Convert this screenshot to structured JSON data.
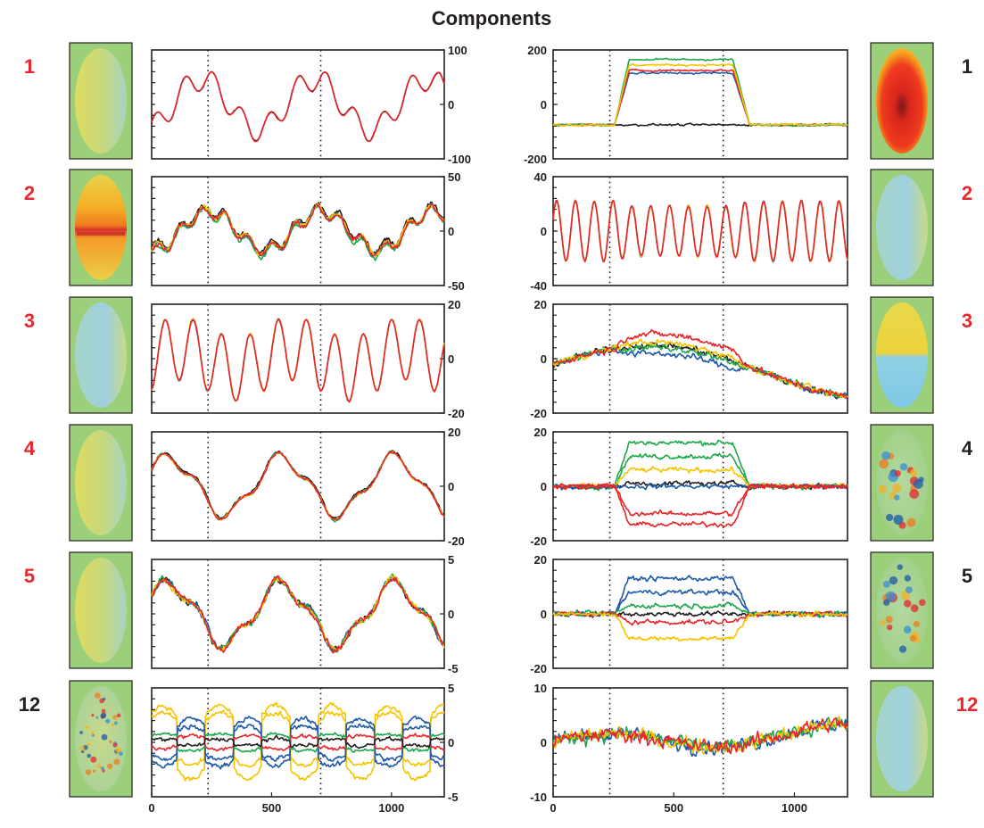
{
  "chart_data": {
    "type": "line",
    "title": "Components",
    "x_ticks": [
      0,
      500,
      1000
    ],
    "xlim": [
      0,
      1220
    ],
    "markers_x": [
      235,
      705
    ],
    "colors": {
      "black": "#231f20",
      "blue": "#1f5aa8",
      "green": "#1fa84a",
      "yellow": "#f5c400",
      "red": "#e8262b",
      "label_red": "#e8262b",
      "label_black": "#231f20"
    },
    "left_column": [
      {
        "label": "1",
        "label_color": "red",
        "ylim": [
          -100,
          100
        ],
        "y_ticks": [
          "100",
          "0",
          "-100"
        ],
        "map": "faint-pos",
        "series": [
          {
            "color": "black",
            "kind": "osc",
            "amp": 62,
            "noise": 2,
            "fade": 0,
            "offset": 0
          },
          {
            "color": "red",
            "kind": "osc",
            "amp": 62,
            "noise": 1,
            "fade": 0,
            "offset": 0
          }
        ]
      },
      {
        "label": "2",
        "label_color": "red",
        "ylim": [
          -50,
          50
        ],
        "y_ticks": [
          "50",
          "0",
          "-50"
        ],
        "map": "warm-band",
        "series": [
          {
            "color": "black",
            "kind": "osc2",
            "amp": 22,
            "noise": 4,
            "fade": 0,
            "offset": 2
          },
          {
            "color": "blue",
            "kind": "osc2",
            "amp": 22,
            "noise": 4,
            "fade": 0,
            "offset": 0
          },
          {
            "color": "green",
            "kind": "osc2",
            "amp": 23,
            "noise": 4,
            "fade": 0,
            "offset": -1
          },
          {
            "color": "yellow",
            "kind": "osc2",
            "amp": 22,
            "noise": 4,
            "fade": 0,
            "offset": 1
          },
          {
            "color": "red",
            "kind": "osc2",
            "amp": 22,
            "noise": 4,
            "fade": 0,
            "offset": 0
          }
        ]
      },
      {
        "label": "3",
        "label_color": "red",
        "ylim": [
          -20,
          20
        ],
        "y_ticks": [
          "20",
          "0",
          "-20"
        ],
        "map": "faint-cool",
        "series": [
          {
            "color": "blue",
            "kind": "osc3",
            "amp": 13,
            "noise": 0.6,
            "fade": 0,
            "offset": 0
          },
          {
            "color": "yellow",
            "kind": "osc3",
            "amp": 13,
            "noise": 0.6,
            "fade": 0,
            "offset": 0
          },
          {
            "color": "red",
            "kind": "osc3",
            "amp": 13,
            "noise": 0.6,
            "fade": 0,
            "offset": 0
          }
        ]
      },
      {
        "label": "4",
        "label_color": "red",
        "ylim": [
          -20,
          20
        ],
        "y_ticks": [
          "20",
          "0",
          "-20"
        ],
        "map": "faint-pos",
        "series": [
          {
            "color": "black",
            "kind": "osc4",
            "amp": 12,
            "noise": 0.8,
            "fade": 0,
            "offset": 0.5
          },
          {
            "color": "green",
            "kind": "osc4",
            "amp": 12,
            "noise": 0.8,
            "fade": 0,
            "offset": 0
          },
          {
            "color": "yellow",
            "kind": "osc4",
            "amp": 12,
            "noise": 0.8,
            "fade": 0,
            "offset": 0
          },
          {
            "color": "red",
            "kind": "osc4",
            "amp": 12,
            "noise": 0.8,
            "fade": 0,
            "offset": 0
          }
        ]
      },
      {
        "label": "5",
        "label_color": "red",
        "ylim": [
          -5,
          5
        ],
        "y_ticks": [
          "5",
          "0",
          "-5"
        ],
        "map": "faint-pos",
        "series": [
          {
            "color": "black",
            "kind": "osc4",
            "amp": 3.2,
            "noise": 0.5,
            "fade": 0,
            "offset": 0
          },
          {
            "color": "blue",
            "kind": "osc4",
            "amp": 3.2,
            "noise": 0.5,
            "fade": 0,
            "offset": 0
          },
          {
            "color": "green",
            "kind": "osc4",
            "amp": 3.2,
            "noise": 0.5,
            "fade": 0,
            "offset": 0
          },
          {
            "color": "yellow",
            "kind": "osc4",
            "amp": 3.2,
            "noise": 0.5,
            "fade": 0,
            "offset": 0
          },
          {
            "color": "red",
            "kind": "osc4",
            "amp": 3.2,
            "noise": 0.5,
            "fade": 0,
            "offset": 0
          }
        ]
      },
      {
        "label": "12",
        "label_color": "black",
        "ylim": [
          -5,
          5
        ],
        "y_ticks": [
          "5",
          "0",
          "-5"
        ],
        "map": "speckle",
        "series": [
          {
            "color": "yellow",
            "kind": "sq",
            "amp": 3.4,
            "noise": 0.4,
            "fade": 0,
            "offset": 0
          },
          {
            "color": "yellow",
            "kind": "sq",
            "amp": 2.4,
            "noise": 0.4,
            "fade": 0,
            "offset": 0.3
          },
          {
            "color": "blue",
            "kind": "sq",
            "amp": -2.2,
            "noise": 0.4,
            "fade": 0,
            "offset": 0
          },
          {
            "color": "blue",
            "kind": "sq",
            "amp": -1.5,
            "noise": 0.4,
            "fade": 0,
            "offset": 0
          },
          {
            "color": "green",
            "kind": "sq",
            "amp": 0.8,
            "noise": 0.3,
            "fade": 0,
            "offset": 0
          },
          {
            "color": "red",
            "kind": "sq",
            "amp": -0.6,
            "noise": 0.3,
            "fade": 0,
            "offset": 0
          },
          {
            "color": "black",
            "kind": "sq",
            "amp": 0.3,
            "noise": 0.3,
            "fade": 0,
            "offset": 0
          }
        ]
      }
    ],
    "right_column": [
      {
        "label": "1",
        "label_color": "black",
        "ylim": [
          -200,
          200
        ],
        "y_ticks": [
          "200",
          "0",
          "-200"
        ],
        "map": "red-blob",
        "series": [
          {
            "color": "black",
            "kind": "flat",
            "amp": 0,
            "noise": 6,
            "fade": 0,
            "offset": -75
          },
          {
            "color": "blue",
            "kind": "plateau",
            "amp": 190,
            "noise": 6,
            "fade": 0,
            "offset": -75
          },
          {
            "color": "red",
            "kind": "plateau",
            "amp": 200,
            "noise": 6,
            "fade": 0,
            "offset": -75
          },
          {
            "color": "green",
            "kind": "plateau",
            "amp": 240,
            "noise": 6,
            "fade": 0,
            "offset": -75
          },
          {
            "color": "yellow",
            "kind": "plateau",
            "amp": 220,
            "noise": 6,
            "fade": 0,
            "offset": -75
          }
        ]
      },
      {
        "label": "2",
        "label_color": "red",
        "ylim": [
          -40,
          40
        ],
        "y_ticks": [
          "40",
          "0",
          "-40"
        ],
        "map": "faint-cool",
        "series": [
          {
            "color": "blue",
            "kind": "fast",
            "amp": 22,
            "noise": 1.5,
            "fade": 0,
            "offset": 0
          },
          {
            "color": "yellow",
            "kind": "fast",
            "amp": 22,
            "noise": 1.5,
            "fade": 0,
            "offset": 0
          },
          {
            "color": "red",
            "kind": "fast",
            "amp": 22,
            "noise": 1.5,
            "fade": 0,
            "offset": 0
          }
        ]
      },
      {
        "label": "3",
        "label_color": "red",
        "ylim": [
          -20,
          20
        ],
        "y_ticks": [
          "20",
          "0",
          "-20"
        ],
        "map": "split",
        "series": [
          {
            "color": "black",
            "kind": "drift",
            "amp": 0,
            "noise": 2,
            "fade": 0,
            "offset": 0
          },
          {
            "color": "blue",
            "kind": "drift",
            "amp": -3,
            "noise": 2,
            "fade": 0,
            "offset": 0
          },
          {
            "color": "green",
            "kind": "drift",
            "amp": -1,
            "noise": 2,
            "fade": 0,
            "offset": 0
          },
          {
            "color": "yellow",
            "kind": "drift",
            "amp": 1,
            "noise": 2,
            "fade": 0,
            "offset": 0
          },
          {
            "color": "red",
            "kind": "drift",
            "amp": 4,
            "noise": 2,
            "fade": 0,
            "offset": 0
          }
        ]
      },
      {
        "label": "4",
        "label_color": "black",
        "ylim": [
          -20,
          20
        ],
        "y_ticks": [
          "20",
          "0",
          "-20"
        ],
        "map": "blobs",
        "series": [
          {
            "color": "black",
            "kind": "plateau",
            "amp": 1,
            "noise": 1.5,
            "fade": 0,
            "offset": 0
          },
          {
            "color": "green",
            "kind": "plateau",
            "amp": 16,
            "noise": 1.5,
            "fade": 0,
            "offset": 0
          },
          {
            "color": "green",
            "kind": "plateau",
            "amp": 11,
            "noise": 1.5,
            "fade": 0,
            "offset": 0
          },
          {
            "color": "yellow",
            "kind": "plateau",
            "amp": 6,
            "noise": 1.5,
            "fade": 0,
            "offset": 0
          },
          {
            "color": "blue",
            "kind": "plateau",
            "amp": 0,
            "noise": 1.5,
            "fade": 0,
            "offset": 0
          },
          {
            "color": "red",
            "kind": "plateau",
            "amp": -10,
            "noise": 1.5,
            "fade": 0,
            "offset": 0
          },
          {
            "color": "red",
            "kind": "plateau",
            "amp": -14,
            "noise": 1.5,
            "fade": 0,
            "offset": 0
          }
        ]
      },
      {
        "label": "5",
        "label_color": "black",
        "ylim": [
          -20,
          20
        ],
        "y_ticks": [
          "20",
          "0",
          "-20"
        ],
        "map": "blobs",
        "series": [
          {
            "color": "black",
            "kind": "plateau",
            "amp": 0,
            "noise": 1.5,
            "fade": 0,
            "offset": 0
          },
          {
            "color": "blue",
            "kind": "plateau",
            "amp": 13,
            "noise": 1.5,
            "fade": 0,
            "offset": 0
          },
          {
            "color": "blue",
            "kind": "plateau",
            "amp": 8,
            "noise": 1.5,
            "fade": 0,
            "offset": 0
          },
          {
            "color": "green",
            "kind": "plateau",
            "amp": 3,
            "noise": 1.5,
            "fade": 0,
            "offset": 0
          },
          {
            "color": "red",
            "kind": "plateau",
            "amp": -3,
            "noise": 1.5,
            "fade": 0,
            "offset": 0
          },
          {
            "color": "yellow",
            "kind": "plateau",
            "amp": -9,
            "noise": 1.5,
            "fade": 0,
            "offset": 0
          }
        ]
      },
      {
        "label": "12",
        "label_color": "red",
        "ylim": [
          -10,
          10
        ],
        "y_ticks": [
          "10",
          "0",
          "-10"
        ],
        "map": "faint-cool",
        "series": [
          {
            "color": "blue",
            "kind": "noisy",
            "amp": 0,
            "noise": 2.2,
            "fade": 0,
            "offset": 0
          },
          {
            "color": "green",
            "kind": "noisy",
            "amp": 0,
            "noise": 2.2,
            "fade": 0,
            "offset": 0
          },
          {
            "color": "yellow",
            "kind": "noisy",
            "amp": 0,
            "noise": 2.2,
            "fade": 0,
            "offset": 0
          },
          {
            "color": "red",
            "kind": "noisy",
            "amp": 0,
            "noise": 2.2,
            "fade": 0,
            "offset": 0
          }
        ]
      }
    ]
  }
}
